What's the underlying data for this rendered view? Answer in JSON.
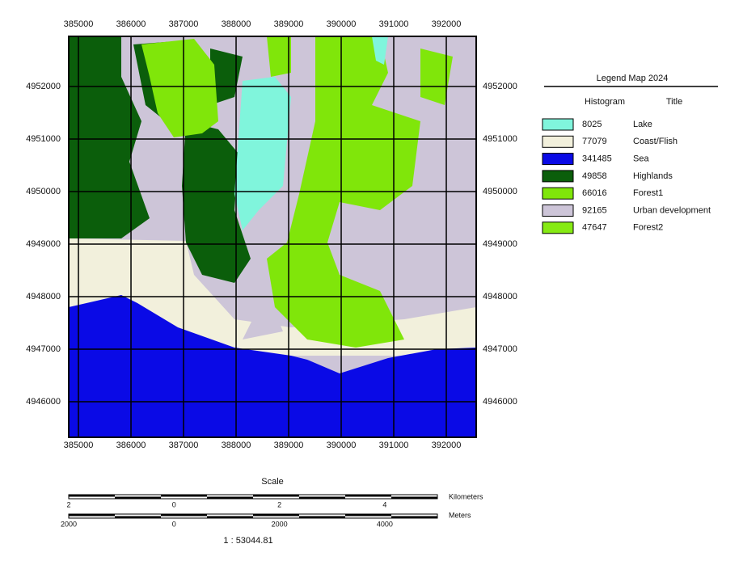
{
  "map": {
    "xlim": [
      384815,
      392569
    ],
    "ylim": [
      4945323,
      4952954
    ],
    "xticks": [
      385000,
      386000,
      387000,
      388000,
      389000,
      390000,
      391000,
      392000
    ],
    "yticks": [
      4952000,
      4951000,
      4950000,
      4949000,
      4948000,
      4947000,
      4946000
    ]
  },
  "legend": {
    "title": "Legend Map 2024",
    "headers": [
      "Histogram",
      "Title"
    ],
    "entries": [
      {
        "color": "#80f5dc",
        "count": 8025,
        "title": "Lake"
      },
      {
        "color": "#f2f0dc",
        "count": 77079,
        "title": "Coast/Flish"
      },
      {
        "color": "#0a0ae6",
        "count": 341485,
        "title": "Sea"
      },
      {
        "color": "#0b5e0b",
        "count": 49858,
        "title": "Highlands"
      },
      {
        "color": "#80e60a",
        "count": 66016,
        "title": "Forest1"
      },
      {
        "color": "#cdc5d8",
        "count": 92165,
        "title": "Urban development"
      },
      {
        "color": "#86ea14",
        "count": 47647,
        "title": "Forest2"
      }
    ]
  },
  "scale": {
    "title": "Scale",
    "km_unit": "Kilometers",
    "km_labels": [
      2,
      0,
      2,
      4
    ],
    "m_unit": "Meters",
    "m_labels": [
      2000,
      0,
      2000,
      4000
    ],
    "ratio": "1 : 53044.81"
  }
}
